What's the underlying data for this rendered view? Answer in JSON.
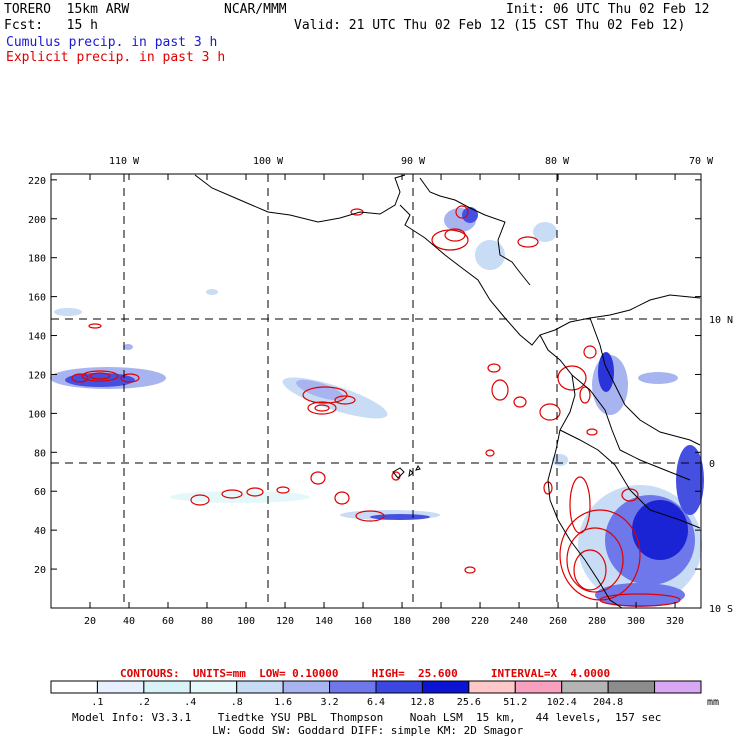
{
  "header": {
    "model": "TORERO  15km ARW",
    "org": "NCAR/MMM",
    "init": "Init: 06 UTC Thu 02 Feb 12",
    "fcst": "Fcst:   15 h",
    "valid": "Valid: 21 UTC Thu 02 Feb 12 (15 CST Thu 02 Feb 12)",
    "field1": "Cumulus precip. in past 3 h",
    "field2": "Explicit precip. in past 3 h"
  },
  "map": {
    "lon_labels": [
      "110 W",
      "100 W",
      "90 W",
      "80 W",
      "70 W"
    ],
    "lat_labels": [
      "10 N",
      "0",
      "10 S"
    ],
    "x_ticks": [
      "20",
      "40",
      "60",
      "80",
      "100",
      "120",
      "140",
      "160",
      "180",
      "200",
      "220",
      "240",
      "260",
      "280",
      "300",
      "320"
    ],
    "y_ticks": [
      "220",
      "200",
      "180",
      "160",
      "140",
      "120",
      "100",
      "80",
      "60",
      "40",
      "20"
    ]
  },
  "contour_info": "CONTOURS:  UNITS=mm  LOW= 0.10000     HIGH=  25.600     INTERVAL=X  4.0000",
  "colorbar": {
    "labels": [
      ".1",
      ".2",
      ".4",
      ".8",
      "1.6",
      "3.2",
      "6.4",
      "12.8",
      "25.6",
      "51.2",
      "102.4",
      "204.8"
    ],
    "units": "mm",
    "colors": [
      "#ffffff",
      "#e8f0ff",
      "#d9f2f7",
      "#e4f8fa",
      "#c8dcf5",
      "#a8b4f0",
      "#6e78ea",
      "#3c46e0",
      "#0a14d2",
      "#ffc8c8",
      "#f7a0c0",
      "#b4b4b4",
      "#8c8c8c",
      "#d8a8f5"
    ]
  },
  "footer": {
    "line1": "Model Info: V3.3.1    Tiedtke YSU PBL  Thompson    Noah LSM  15 km,   44 levels,  157 sec",
    "line2": "LW: Godd SW: Goddard DIFF: simple KM: 2D Smagor"
  }
}
